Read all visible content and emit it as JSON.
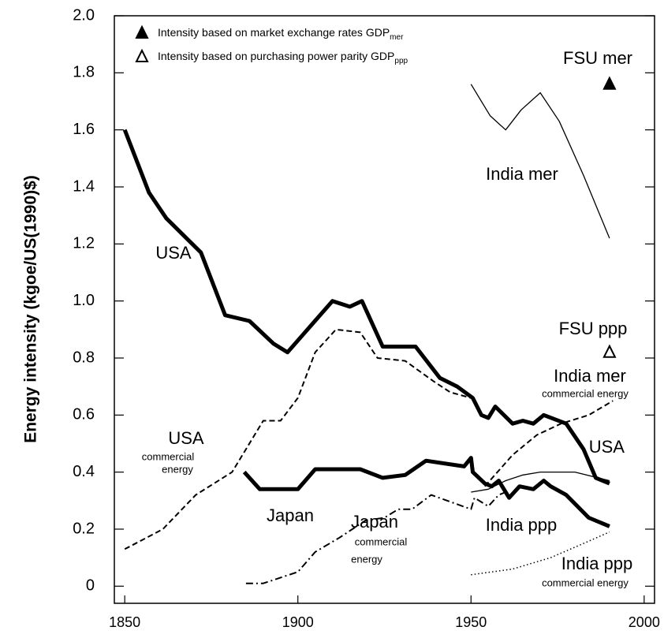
{
  "chart_data": {
    "type": "line",
    "ylabel": "Energy intensity (kgoe/US(1990)$)",
    "xlim": [
      1847,
      2003
    ],
    "ylim": [
      -0.06,
      2.0
    ],
    "xticks": [
      1850,
      1900,
      1950,
      2000
    ],
    "yticks": [
      0,
      0.2,
      0.4,
      0.6,
      0.8,
      {
        "value": 1.0,
        "label": "1.0"
      },
      1.2,
      1.4,
      1.6,
      1.8,
      {
        "value": 2.0,
        "label": "2.0"
      }
    ],
    "series": [
      {
        "name": "USA",
        "color": "#000000",
        "style": "solid",
        "width": 5,
        "x": [
          1850,
          1857,
          1862,
          1872,
          1879,
          1886,
          1893,
          1897,
          1903.5,
          1910,
          1915,
          1918.5,
          1924.5,
          1934,
          1941,
          1946,
          1950.5,
          1953,
          1955,
          1957,
          1962,
          1965,
          1968,
          1971,
          1977.5,
          1982.5,
          1986,
          1990
        ],
        "values": [
          1.6,
          1.38,
          1.29,
          1.17,
          0.95,
          0.93,
          0.85,
          0.82,
          0.91,
          1.0,
          0.98,
          1.0,
          0.84,
          0.84,
          0.73,
          0.7,
          0.66,
          0.6,
          0.59,
          0.63,
          0.57,
          0.58,
          0.57,
          0.6,
          0.57,
          0.48,
          0.38,
          0.36
        ]
      },
      {
        "name": "USA commercial energy",
        "color": "#000000",
        "style": "dashed",
        "width": 2,
        "x": [
          1850,
          1861,
          1870.5,
          1881,
          1890,
          1895,
          1900,
          1905,
          1911,
          1918,
          1923,
          1931,
          1939,
          1944,
          1950
        ],
        "values": [
          0.13,
          0.2,
          0.32,
          0.4,
          0.58,
          0.58,
          0.66,
          0.82,
          0.9,
          0.89,
          0.8,
          0.79,
          0.72,
          0.68,
          0.66
        ]
      },
      {
        "name": "Japan",
        "color": "#000000",
        "style": "solid",
        "width": 5,
        "x": [
          1884.5,
          1889,
          1900,
          1905,
          1918,
          1924.5,
          1931,
          1937,
          1948,
          1950,
          1950.5,
          1954,
          1956,
          1958,
          1961,
          1964,
          1968,
          1971,
          1973,
          1977.5,
          1984,
          1990
        ],
        "values": [
          0.4,
          0.34,
          0.34,
          0.41,
          0.41,
          0.38,
          0.39,
          0.44,
          0.42,
          0.45,
          0.4,
          0.36,
          0.35,
          0.37,
          0.31,
          0.35,
          0.34,
          0.37,
          0.35,
          0.32,
          0.24,
          0.21
        ]
      },
      {
        "name": "Japan commercial energy",
        "color": "#000000",
        "style": "dashdot",
        "width": 2,
        "x": [
          1885,
          1890,
          1900,
          1905,
          1912,
          1919.5,
          1925,
          1929,
          1933,
          1938.5,
          1950,
          1951,
          1955,
          1958,
          1960
        ],
        "values": [
          0.01,
          0.01,
          0.05,
          0.12,
          0.17,
          0.23,
          0.24,
          0.27,
          0.27,
          0.32,
          0.27,
          0.31,
          0.28,
          0.32,
          0.33
        ]
      },
      {
        "name": "India mer",
        "color": "#000000",
        "style": "solid",
        "width": 1.3,
        "x": [
          1950,
          1955.5,
          1960,
          1964.5,
          1970,
          1975.5,
          1982.5,
          1990
        ],
        "values": [
          1.76,
          1.65,
          1.6,
          1.67,
          1.73,
          1.63,
          1.44,
          1.22
        ]
      },
      {
        "name": "India mer commercial energy",
        "color": "#000000",
        "style": "dashed",
        "width": 2,
        "x": [
          1954,
          1962,
          1969,
          1976,
          1984,
          1991
        ],
        "values": [
          0.35,
          0.46,
          0.53,
          0.57,
          0.6,
          0.65
        ]
      },
      {
        "name": "India ppp",
        "color": "#000000",
        "style": "solid",
        "width": 1.3,
        "x": [
          1950,
          1955,
          1960,
          1965,
          1970,
          1980,
          1990
        ],
        "values": [
          0.33,
          0.34,
          0.37,
          0.39,
          0.4,
          0.4,
          0.37
        ]
      },
      {
        "name": "India ppp commercial energy",
        "color": "#000000",
        "style": "dotted",
        "width": 1.5,
        "x": [
          1950,
          1962,
          1973,
          1982.5,
          1990
        ],
        "values": [
          0.04,
          0.06,
          0.1,
          0.15,
          0.19
        ]
      },
      {
        "name": "Intensity based on market exchange rates GDP",
        "sub": "mer",
        "marker": "filled-triangle",
        "color": "#000000",
        "x": [
          1990
        ],
        "values": [
          1.76
        ]
      },
      {
        "name": "Intensity based on purchasing power parity GDP",
        "sub": "ppp",
        "marker": "open-triangle",
        "color": "#000000",
        "x": [
          1990
        ],
        "values": [
          0.82
        ]
      }
    ],
    "legend": "upper left",
    "annotations": [
      "FSU mer",
      "India mer",
      "USA",
      "FSU ppp",
      "India mer",
      "commercial energy",
      "USA",
      "USA",
      "commercial",
      "energy",
      "Japan",
      "India ppp",
      "Japan",
      "commercial",
      "energy",
      "India ppp",
      "commercial energy"
    ]
  }
}
